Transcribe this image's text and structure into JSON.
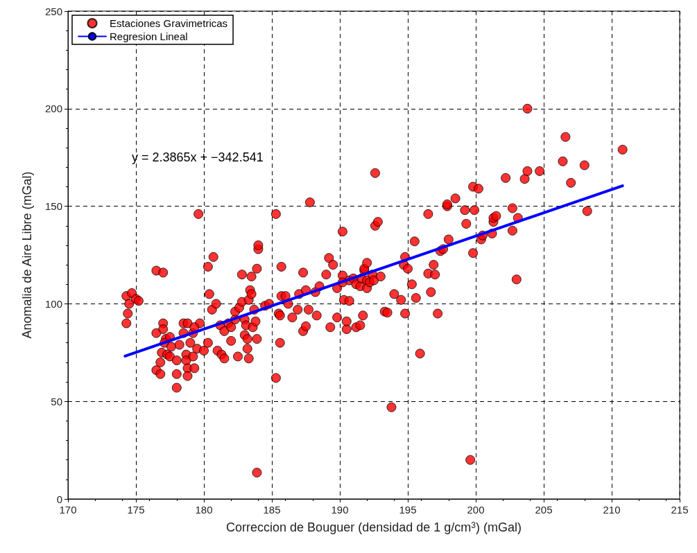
{
  "chart_data": {
    "type": "scatter",
    "xlabel": "Correccion de Bouguer (densidad de 1 g/cm$^{3}$) (mGal)",
    "ylabel": "Anomalia de Aire Libre (mGal)",
    "annotations": [
      "y = 2.3865x + −342.541"
    ],
    "xlim": [
      170,
      215
    ],
    "xticks": [
      170,
      175,
      180,
      185,
      190,
      195,
      200,
      205,
      210,
      215
    ],
    "ylim": [
      0,
      250
    ],
    "yticks": [
      0,
      50,
      100,
      150,
      200,
      250
    ],
    "grid": true,
    "legend": "top left",
    "marker": "circle",
    "series": [
      {
        "name": "Estaciones Gravimetricas",
        "color": "#ff0000",
        "x": [
          174.3,
          174.5,
          174.7,
          174.4,
          174.3,
          175.0,
          175.2,
          176.5,
          177,
          176.5,
          176.5,
          176.8,
          176.8,
          177,
          177,
          177.2,
          177.1,
          177.5,
          176.9,
          177.3,
          177.6,
          177.5,
          178,
          178,
          178,
          178.2,
          178.5,
          178.5,
          178.8,
          178.7,
          178.7,
          178.8,
          178.8,
          179,
          179.2,
          179.3,
          179.5,
          179.2,
          179.6,
          179.7,
          179.3,
          180,
          180.3,
          180.3,
          180.4,
          180.6,
          180.7,
          180.9,
          181,
          181.3,
          181.2,
          181.5,
          181.5,
          181.8,
          182,
          182,
          182.3,
          182.3,
          182.6,
          182.5,
          182.8,
          182.8,
          183,
          183,
          183.1,
          183.2,
          183.2,
          183.3,
          183.4,
          183.3,
          183.5,
          183.5,
          183.7,
          183.6,
          183.9,
          183.8,
          183.9,
          184,
          184,
          183.9,
          184.5,
          184.8,
          185.3,
          185.3,
          185.5,
          185.6,
          185.6,
          185.7,
          185.7,
          186,
          186.2,
          186.5,
          186.9,
          187,
          187.3,
          187.3,
          187.5,
          187.5,
          187.7,
          187.8,
          188.2,
          188.3,
          188.5,
          189,
          189.2,
          189.3,
          189.5,
          189.8,
          189.8,
          190.2,
          190.2,
          190.2,
          190.3,
          190.5,
          190.5,
          190.7,
          190.7,
          191,
          191.2,
          191.2,
          191.5,
          191.5,
          191.6,
          191.7,
          191.8,
          191.8,
          192,
          192,
          192,
          192.2,
          192.4,
          192.5,
          192.6,
          192.6,
          192.8,
          193,
          193.3,
          193.5,
          193.8,
          194,
          194.5,
          194.7,
          194.8,
          194.8,
          195,
          195.3,
          195.5,
          195.6,
          195.9,
          196.5,
          196.5,
          196.9,
          196.7,
          197,
          197.2,
          197.4,
          197.6,
          197.9,
          197.9,
          198,
          198.5,
          199.2,
          199.3,
          199.6,
          199.8,
          199.8,
          199.9,
          200.2,
          200.4,
          200.5,
          201.2,
          201.3,
          201.3,
          201.5,
          202.2,
          202.7,
          202.7,
          203,
          203.1,
          203.6,
          203.8,
          203.8,
          204.7,
          206.4,
          206.6,
          207,
          208,
          208.2,
          210.8
        ],
        "values": [
          104,
          100,
          105.5,
          95,
          90,
          102.5,
          101.5,
          117,
          116,
          85,
          66,
          70,
          64,
          90,
          87,
          82,
          80,
          83,
          75,
          74,
          78,
          73,
          71,
          64,
          57,
          79,
          85,
          90,
          90,
          74,
          71,
          67,
          63,
          80,
          73,
          67,
          77,
          85,
          146,
          90,
          88,
          76,
          80,
          119,
          105,
          97,
          124,
          100,
          76,
          74,
          89,
          86,
          72,
          90,
          81,
          88,
          92,
          96,
          98,
          73,
          101,
          115,
          84,
          92,
          89,
          77,
          82,
          102,
          107,
          72,
          105,
          114,
          97,
          88,
          82,
          91,
          118,
          128,
          130,
          13.5,
          99,
          100,
          146,
          62,
          95,
          80,
          94,
          104,
          119,
          104,
          100,
          93,
          97,
          105,
          116,
          86,
          88.5,
          107,
          97,
          152,
          106,
          94,
          109,
          115,
          123.5,
          88,
          120,
          108,
          93,
          137,
          114.5,
          111,
          102,
          87,
          91,
          101.5,
          112,
          113,
          110,
          88,
          109,
          89,
          113,
          94,
          117,
          118,
          112,
          108,
          121,
          111,
          115,
          112,
          140,
          167,
          142,
          114,
          96,
          95.5,
          47,
          105,
          102,
          120,
          124,
          95,
          118,
          110,
          132,
          103,
          74.5,
          146,
          115.5,
          120,
          106,
          115,
          95,
          127,
          128,
          150,
          151,
          133,
          154,
          148,
          141,
          20,
          126,
          160,
          148,
          159,
          133,
          135,
          136,
          142,
          144,
          145,
          164.5,
          149,
          137.5,
          112.5,
          144,
          164,
          168,
          200,
          168,
          173,
          185.5,
          162,
          171,
          147.5,
          179
        ]
      },
      {
        "name": "Regresion Lineal",
        "type": "line",
        "color": "#0000ff",
        "marker": "none",
        "x": [
          174.2,
          210.8
        ],
        "values": [
          73.2,
          160.5
        ]
      }
    ]
  }
}
